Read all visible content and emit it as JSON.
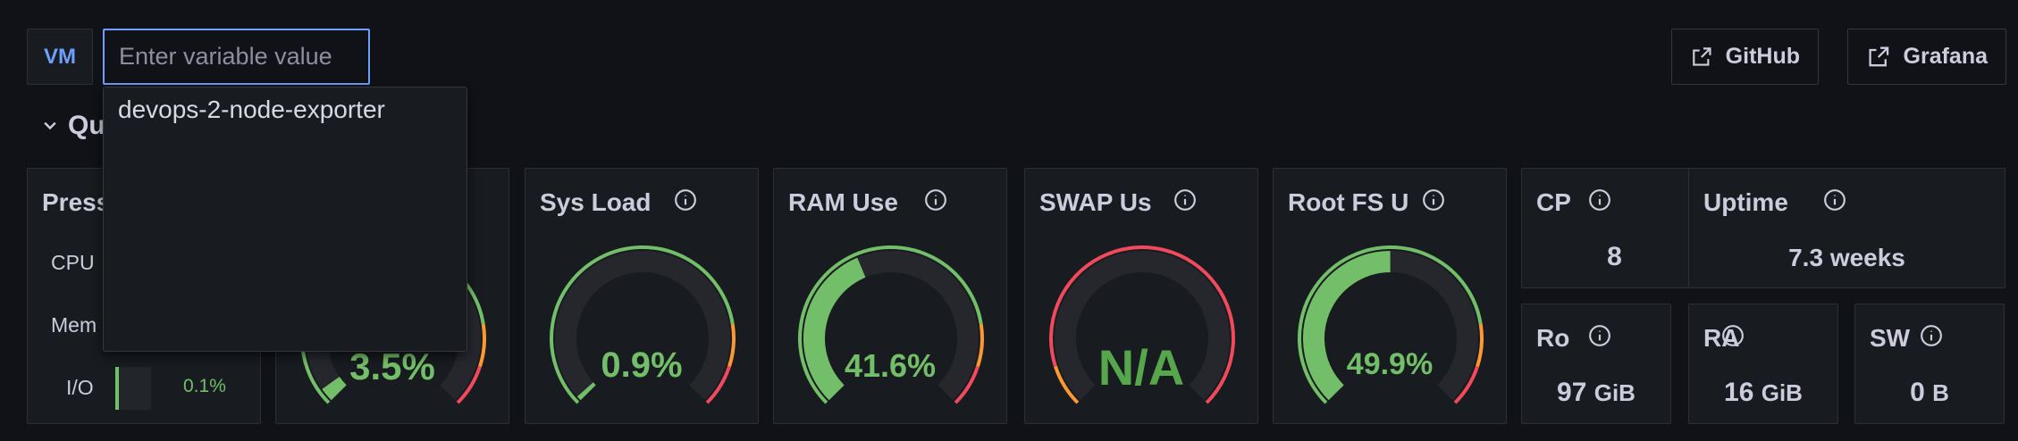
{
  "header": {
    "var_label": "VM",
    "var_placeholder": "Enter variable value",
    "options": [
      "devops-2-node-exporter"
    ],
    "links": [
      {
        "label": "GitHub",
        "icon": "external-link-icon"
      },
      {
        "label": "Grafana",
        "icon": "external-link-icon"
      }
    ]
  },
  "row": {
    "title": "Qu",
    "icon": "chevron-down-icon"
  },
  "panels": {
    "pressure": {
      "title": "Press",
      "rows": [
        {
          "label": "CPU"
        },
        {
          "label": "Mem"
        },
        {
          "label": "I/O",
          "value_text": "0.1%",
          "value": 0.1
        }
      ]
    },
    "cpu_busy": {
      "value_text": "3.5%",
      "value": 3.5
    },
    "sys_load": {
      "title": "Sys Load",
      "value_text": "0.9%",
      "value": 0.9
    },
    "ram_used": {
      "title": "RAM Use",
      "value_text": "41.6%",
      "value": 41.6
    },
    "swap_used": {
      "title": "SWAP Us",
      "value_text": "N/A",
      "value": null
    },
    "root_fs": {
      "title": "Root FS U",
      "value_text": "49.9%",
      "value": 49.9
    },
    "cpu_cores": {
      "title": "CP",
      "value": "8"
    },
    "uptime": {
      "title": "Uptime",
      "value": "7.3 weeks"
    },
    "root_total": {
      "title": "Ro",
      "value": "97",
      "unit": "GiB"
    },
    "ram_total": {
      "title": "RA",
      "value": "16",
      "unit": "GiB"
    },
    "swap_total": {
      "title": "SW",
      "value": "0",
      "unit": "B"
    }
  },
  "colors": {
    "green": "#73bf69",
    "green_dark": "#56a64b",
    "orange": "#ff9830",
    "red": "#f2495c",
    "track": "#25272c",
    "accent": "#6e9fff"
  }
}
